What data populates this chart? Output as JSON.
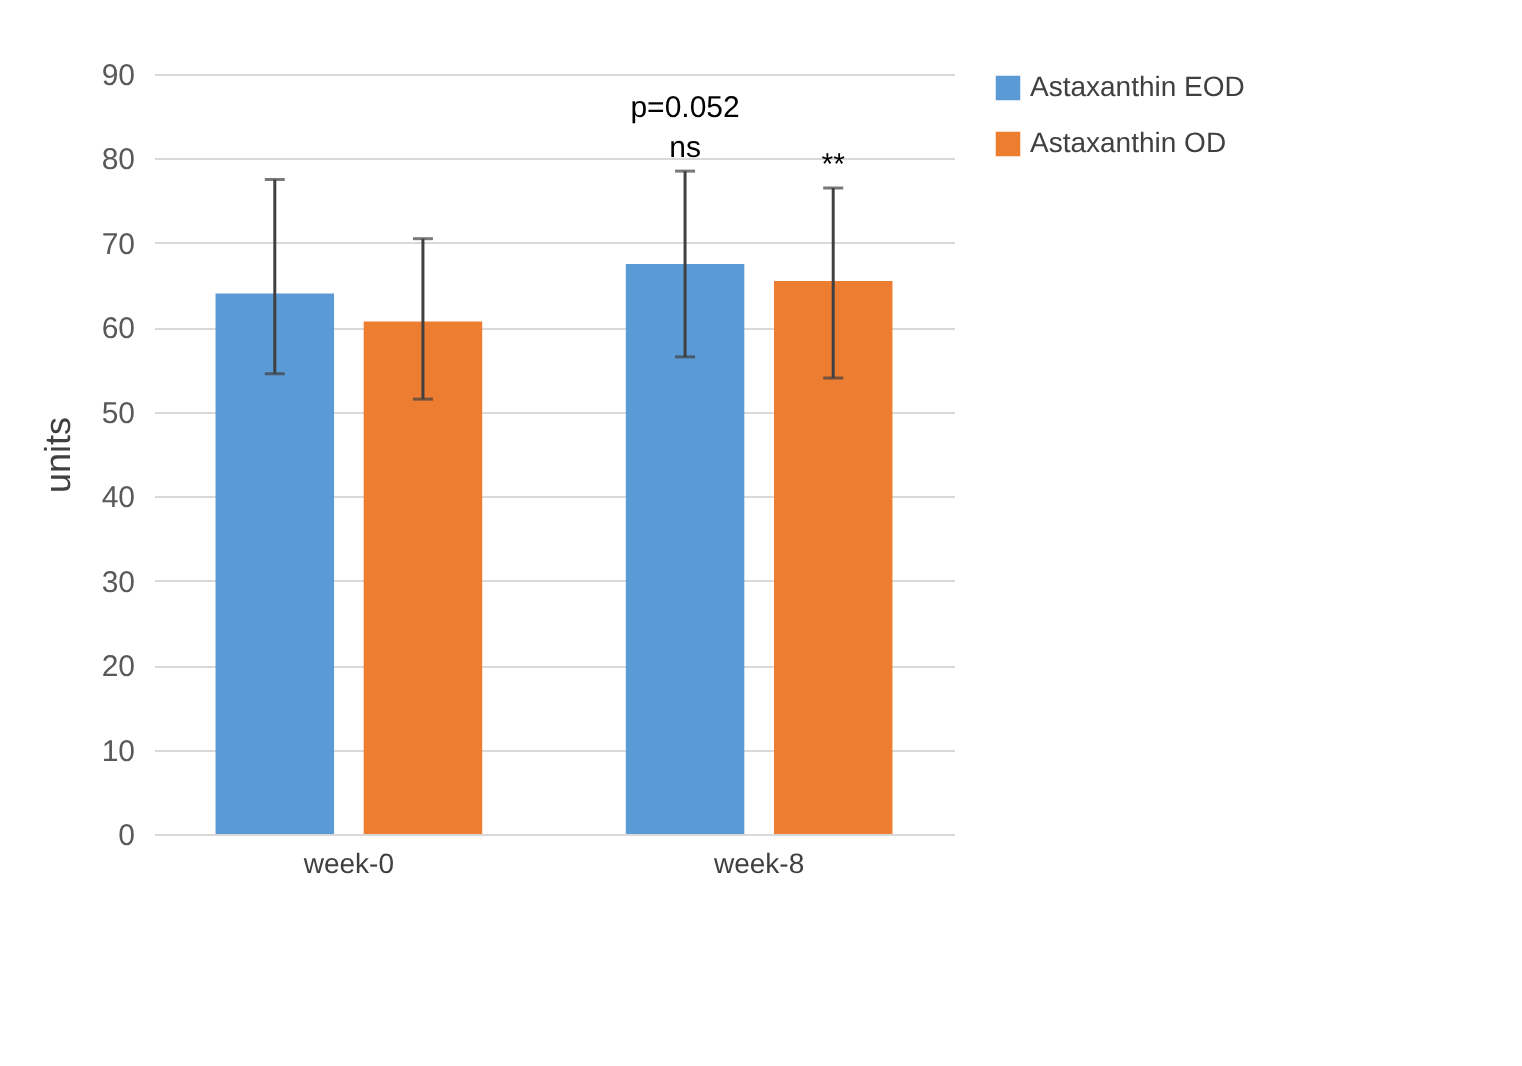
{
  "chart_data": {
    "type": "bar",
    "ylabel": "units",
    "categories": [
      "week-0",
      "week-8"
    ],
    "series": [
      {
        "name": "Astaxanthin EOD",
        "color": "#5b9bd5",
        "values": [
          64,
          67.5
        ],
        "errors": [
          [
            54.5,
            77.5
          ],
          [
            56.5,
            78.5
          ]
        ]
      },
      {
        "name": "Astaxanthin OD",
        "color": "#ed7d31",
        "values": [
          60.7,
          65.5
        ],
        "errors": [
          [
            51.5,
            70.5
          ],
          [
            54,
            76.5
          ]
        ]
      }
    ],
    "annotations": [
      "p=0.052",
      "ns",
      "**"
    ],
    "ylim": [
      0,
      90
    ],
    "yticks": [
      0,
      10,
      20,
      30,
      40,
      50,
      60,
      70,
      80,
      90
    ],
    "grid": "y",
    "legend": "right"
  }
}
